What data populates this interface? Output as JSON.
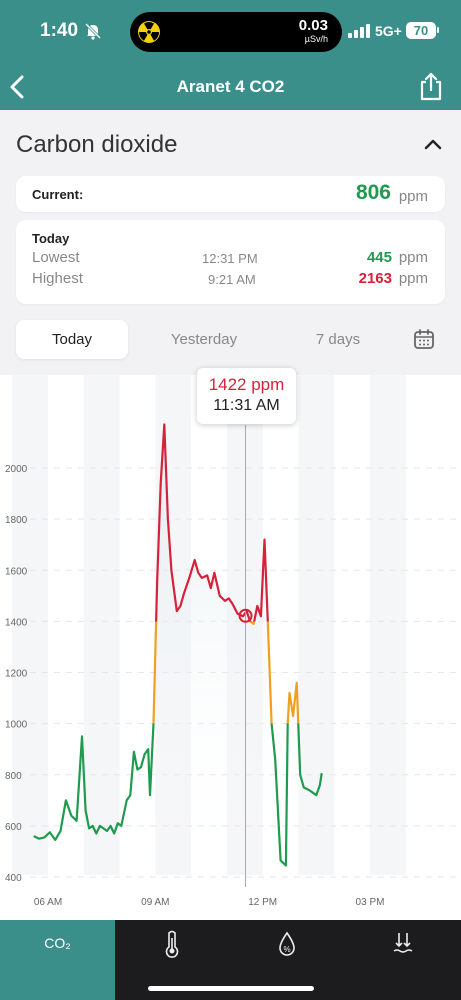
{
  "status_bar": {
    "time": "1:40",
    "dose_value": "0.03",
    "dose_unit": "µSv/h",
    "network": "5G+",
    "battery": "70"
  },
  "nav": {
    "title": "Aranet 4 CO2",
    "back_icon": "chevron-left-icon",
    "share_icon": "share-icon"
  },
  "section": {
    "title": "Carbon dioxide"
  },
  "current": {
    "label": "Current:",
    "value": "806",
    "unit": "ppm",
    "color": "#1f9a4e"
  },
  "today_summary": {
    "title": "Today",
    "rows": [
      {
        "label": "Lowest",
        "time": "12:31 PM",
        "value": "445",
        "unit": "ppm",
        "color": "#1f9a4e"
      },
      {
        "label": "Highest",
        "time": "9:21 AM",
        "value": "2163",
        "unit": "ppm",
        "color": "#d6213a"
      }
    ]
  },
  "tabs": [
    {
      "label": "Today",
      "active": true
    },
    {
      "label": "Yesterday",
      "active": false
    },
    {
      "label": "7 days",
      "active": false
    }
  ],
  "tooltip": {
    "value": "1422 ppm",
    "time": "11:31 AM"
  },
  "colors": {
    "teal": "#3b8f8b",
    "green": "#1f9a4e",
    "orange": "#f0a01e",
    "red": "#d6213a"
  },
  "chart_data": {
    "type": "line",
    "ylabel": "",
    "xlabel": "",
    "y_ticks": [
      400,
      600,
      800,
      1000,
      1200,
      1400,
      1600,
      1800,
      2000
    ],
    "x_ticks": [
      "06 AM",
      "09 AM",
      "12 PM",
      "03 PM"
    ],
    "x_tick_hours": [
      6,
      9,
      12,
      15
    ],
    "xlim_hours": [
      5.6,
      16.5
    ],
    "ylim": [
      380,
      2240
    ],
    "thresholds": {
      "orange": 1000,
      "red": 1400
    },
    "cursor_hour": 11.52,
    "cursor_value": 1422,
    "series": [
      {
        "x": [
          5.6,
          5.75,
          5.9,
          6.05,
          6.2,
          6.35,
          6.5,
          6.65,
          6.8,
          6.95,
          7.05,
          7.15,
          7.25,
          7.35,
          7.45,
          7.55,
          7.65,
          7.75,
          7.85,
          7.95,
          8.05,
          8.2,
          8.3,
          8.4,
          8.5,
          8.6,
          8.7,
          8.8,
          8.85,
          8.95,
          9.05,
          9.15,
          9.25,
          9.35,
          9.45,
          9.6,
          9.7,
          9.8,
          9.95,
          10.1,
          10.2,
          10.3,
          10.45,
          10.55,
          10.65,
          10.8,
          10.95,
          11.05,
          11.15,
          11.3,
          11.45,
          11.55,
          11.65,
          11.75,
          11.85,
          11.95,
          12.05,
          12.15,
          12.25,
          12.35,
          12.5,
          12.65,
          12.7,
          12.75,
          12.85,
          12.95,
          13.05,
          13.15,
          13.3,
          13.5,
          13.6,
          13.65
        ],
        "values": [
          560,
          550,
          555,
          575,
          545,
          580,
          700,
          640,
          620,
          950,
          660,
          590,
          600,
          570,
          600,
          590,
          580,
          600,
          570,
          610,
          600,
          700,
          720,
          890,
          820,
          830,
          880,
          900,
          720,
          1000,
          1550,
          1940,
          2170,
          1800,
          1600,
          1440,
          1460,
          1510,
          1570,
          1640,
          1590,
          1570,
          1580,
          1530,
          1590,
          1500,
          1480,
          1490,
          1470,
          1430,
          1420,
          1440,
          1400,
          1390,
          1460,
          1420,
          1720,
          1380,
          1000,
          860,
          465,
          445,
          1000,
          1120,
          1030,
          1160,
          800,
          750,
          740,
          720,
          760,
          806
        ]
      }
    ]
  }
}
